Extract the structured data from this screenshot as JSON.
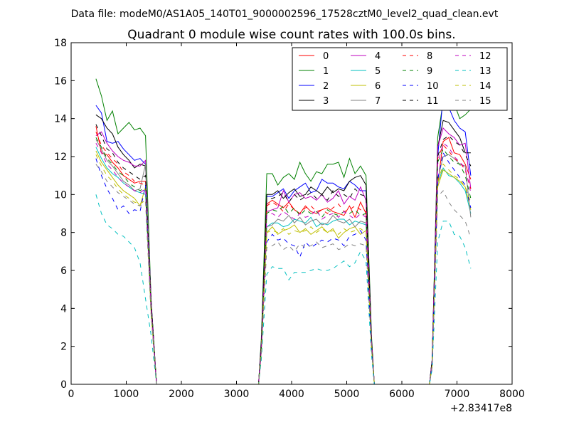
{
  "header": {
    "data_file": "Data file: modeM0/AS1A05_140T01_9000002596_17528cztM0_level2_quad_clean.evt"
  },
  "chart_data": {
    "type": "line",
    "title": "Quadrant 0 module wise count rates with 100.0s bins.",
    "xlabel": "",
    "ylabel": "",
    "x_offset_label": "+2.83417e8",
    "xlim": [
      0,
      8000
    ],
    "ylim": [
      0,
      18
    ],
    "xticks": [
      0,
      1000,
      2000,
      3000,
      4000,
      5000,
      6000,
      7000,
      8000
    ],
    "yticks": [
      0,
      2,
      4,
      6,
      8,
      10,
      12,
      14,
      16,
      18
    ],
    "grid": false,
    "legend_position": "top-right",
    "segments": [
      {
        "x_start": 450,
        "step": 100,
        "count": 10,
        "drop_x": [
          1450,
          1550
        ]
      },
      {
        "rise_x": [
          3450,
          3550
        ],
        "x_start": 3650,
        "step": 100,
        "count": 17,
        "drop_x": [
          5350,
          5450
        ]
      },
      {
        "rise_x": [
          6550,
          6650
        ],
        "x_start": 6750,
        "step": 100,
        "count": 6
      },
      {
        "x_start": 6750,
        "step": 100,
        "count": 6
      }
    ],
    "zero_x": [
      1600,
      3400,
      5500,
      6500
    ],
    "series": [
      {
        "name": "0",
        "color": "#ff0000",
        "dash": "solid",
        "seg1": [
          13.6,
          12.2,
          12.1,
          11.7,
          11.4,
          11.0,
          10.8,
          10.6,
          10.7,
          10.7
        ],
        "seg1_drop": [
          4.3,
          0
        ],
        "seg2": [
          9.7,
          9.5,
          9.3,
          9.6,
          9.2,
          9.0,
          9.4,
          9.1,
          9.0,
          9.2,
          9.3,
          9.1,
          9.0,
          8.9,
          9.4,
          8.8,
          9.6
        ],
        "seg2_drop": [
          9.0,
          2.2
        ],
        "seg2_rise": [
          2.0,
          9.5
        ],
        "seg3": [
          12.8,
          13.0,
          12.2,
          12.1,
          11.6,
          10.8
        ],
        "seg3_rise": [
          1.0,
          10.5
        ]
      },
      {
        "name": "1",
        "color": "#008000",
        "dash": "solid",
        "seg1": [
          16.1,
          15.2,
          13.9,
          14.4,
          13.2,
          13.5,
          13.8,
          13.4,
          13.5,
          13.1
        ],
        "seg1_drop": [
          4.5,
          0
        ],
        "seg2": [
          11.1,
          10.5,
          10.9,
          11.1,
          10.8,
          11.7,
          11.1,
          10.7,
          11.2,
          11.1,
          11.6,
          11.6,
          11.7,
          10.9,
          11.9,
          11.1,
          11.5
        ],
        "seg2_drop": [
          11.0,
          2.5
        ],
        "seg2_rise": [
          2.4,
          11.1
        ],
        "seg3": [
          14.9,
          14.8,
          14.8,
          14.0,
          14.2,
          14.5
        ],
        "seg3_rise": [
          1.3,
          13.0
        ]
      },
      {
        "name": "2",
        "color": "#0000ff",
        "dash": "solid",
        "seg1": [
          14.7,
          14.3,
          12.8,
          12.7,
          12.8,
          12.4,
          12.1,
          11.8,
          11.9,
          11.6
        ],
        "seg1_drop": [
          4.4,
          0
        ],
        "seg2": [
          9.9,
          10.1,
          10.3,
          9.8,
          10.2,
          10.4,
          10.6,
          10.1,
          10.2,
          10.8,
          10.6,
          10.6,
          10.4,
          10.3,
          10.7,
          10.5,
          10.2
        ],
        "seg2_drop": [
          10.2,
          2.3
        ],
        "seg2_rise": [
          2.2,
          9.9
        ],
        "seg3": [
          15.2,
          14.6,
          13.9,
          13.5,
          13.3,
          11.0
        ],
        "seg3_rise": [
          1.3,
          12.0
        ]
      },
      {
        "name": "3",
        "color": "#000000",
        "dash": "solid",
        "seg1": [
          14.2,
          14.0,
          13.5,
          13.2,
          12.5,
          12.1,
          11.8,
          11.4,
          11.6,
          11.5
        ],
        "seg1_drop": [
          4.4,
          0
        ],
        "seg2": [
          10.0,
          10.2,
          9.8,
          10.1,
          10.3,
          9.9,
          10.0,
          10.4,
          10.2,
          10.0,
          10.4,
          10.1,
          10.3,
          10.2,
          10.7,
          10.9,
          11.0
        ],
        "seg2_drop": [
          10.5,
          2.3
        ],
        "seg2_rise": [
          2.2,
          10.0
        ],
        "seg3": [
          13.9,
          13.8,
          13.4,
          13.0,
          12.2,
          12.2
        ],
        "seg3_rise": [
          1.3,
          12.5
        ]
      },
      {
        "name": "4",
        "color": "#bf00bf",
        "dash": "solid",
        "seg1": [
          13.1,
          13.3,
          12.7,
          12.3,
          12.0,
          11.8,
          11.7,
          11.5,
          11.5,
          11.8
        ],
        "seg1_drop": [
          4.3,
          0
        ],
        "seg2": [
          9.2,
          9.3,
          10.2,
          9.6,
          10.0,
          10.1,
          9.8,
          9.9,
          9.7,
          10.0,
          9.6,
          9.8,
          10.2,
          9.5,
          9.9,
          9.7,
          10.4
        ],
        "seg2_drop": [
          9.7,
          2.2
        ],
        "seg2_rise": [
          2.0,
          9.1
        ],
        "seg3": [
          13.5,
          13.2,
          13.0,
          12.6,
          12.7,
          10.3
        ],
        "seg3_rise": [
          1.2,
          12.5
        ]
      },
      {
        "name": "5",
        "color": "#00bfbf",
        "dash": "solid",
        "seg1": [
          12.5,
          11.9,
          11.4,
          11.1,
          10.9,
          10.6,
          10.4,
          10.2,
          10.1,
          10.0
        ],
        "seg1_drop": [
          3.9,
          0
        ],
        "seg2": [
          8.5,
          8.5,
          8.3,
          8.4,
          8.7,
          8.6,
          8.5,
          8.8,
          8.3,
          8.5,
          8.4,
          8.6,
          8.7,
          8.7,
          8.4,
          8.6,
          8.5
        ],
        "seg2_drop": [
          8.4,
          2.0
        ],
        "seg2_rise": [
          1.8,
          8.3
        ],
        "seg3": [
          11.4,
          11.0,
          10.9,
          10.6,
          10.2,
          9.0
        ],
        "seg3_rise": [
          1.0,
          10.6
        ]
      },
      {
        "name": "6",
        "color": "#bfbf00",
        "dash": "solid",
        "seg1": [
          12.3,
          11.7,
          11.3,
          10.9,
          10.5,
          10.2,
          10.0,
          9.8,
          9.4,
          10.4
        ],
        "seg1_drop": [
          3.8,
          0
        ],
        "seg2": [
          8.3,
          7.9,
          8.1,
          8.2,
          8.4,
          8.0,
          8.2,
          7.9,
          8.1,
          8.3,
          8.0,
          8.2,
          7.7,
          8.0,
          8.2,
          8.3,
          7.9
        ],
        "seg2_drop": [
          8.1,
          2.0
        ],
        "seg2_rise": [
          1.7,
          8.0
        ],
        "seg3": [
          11.3,
          11.1,
          10.9,
          10.7,
          10.4,
          9.2
        ],
        "seg3_rise": [
          1.0,
          10.4
        ]
      },
      {
        "name": "7",
        "color": "#808080",
        "dash": "solid",
        "seg1": [
          12.9,
          12.4,
          11.8,
          11.5,
          11.1,
          10.7,
          10.5,
          10.2,
          10.3,
          11.6
        ],
        "seg1_drop": [
          4.2,
          0
        ],
        "seg2": [
          8.4,
          8.7,
          8.6,
          8.9,
          8.5,
          8.8,
          8.4,
          8.6,
          8.7,
          8.4,
          8.5,
          8.9,
          8.6,
          8.5,
          8.7,
          8.3,
          8.6
        ],
        "seg2_drop": [
          8.5,
          2.1
        ],
        "seg2_rise": [
          1.9,
          8.3
        ],
        "seg3": [
          12.0,
          12.1,
          11.9,
          11.6,
          11.5,
          8.8
        ],
        "seg3_rise": [
          1.1,
          10.8
        ]
      },
      {
        "name": "8",
        "color": "#ff0000",
        "dash": "dashed",
        "seg1": [
          13.3,
          12.6,
          12.2,
          11.9,
          11.6,
          11.2,
          11.0,
          10.7,
          10.6,
          10.5
        ],
        "seg1_drop": [
          4.2,
          0
        ],
        "seg2": [
          9.6,
          9.4,
          9.1,
          9.5,
          9.2,
          9.0,
          9.3,
          9.4,
          9.1,
          9.2,
          9.0,
          9.3,
          9.5,
          9.1,
          9.2,
          9.4,
          9.2
        ],
        "seg2_drop": [
          9.1,
          2.2
        ],
        "seg2_rise": [
          2.0,
          9.4
        ],
        "seg3": [
          12.6,
          12.3,
          11.9,
          11.7,
          11.3,
          10.3
        ],
        "seg3_rise": [
          1.1,
          11.9
        ]
      },
      {
        "name": "9",
        "color": "#008000",
        "dash": "dashed",
        "seg1": [
          13.0,
          12.5,
          11.9,
          11.6,
          11.2,
          11.0,
          10.6,
          10.4,
          10.2,
          10.4
        ],
        "seg1_drop": [
          4.1,
          0
        ],
        "seg2": [
          9.2,
          9.1,
          9.4,
          9.0,
          9.3,
          8.9,
          9.2,
          9.0,
          9.1,
          8.8,
          9.2,
          9.0,
          8.9,
          9.1,
          9.0,
          9.2,
          8.9
        ],
        "seg2_drop": [
          9.0,
          2.1
        ],
        "seg2_rise": [
          1.9,
          9.0
        ],
        "seg3": [
          12.4,
          12.0,
          11.7,
          11.6,
          11.0,
          9.8
        ],
        "seg3_rise": [
          1.1,
          11.7
        ]
      },
      {
        "name": "10",
        "color": "#0000ff",
        "dash": "dashed",
        "seg1": [
          11.9,
          11.0,
          10.3,
          9.8,
          9.2,
          9.4,
          9.0,
          9.2,
          9.1,
          10.5
        ],
        "seg1_drop": [
          3.8,
          0
        ],
        "seg2": [
          7.9,
          7.6,
          7.7,
          7.4,
          7.3,
          6.7,
          7.5,
          7.2,
          7.4,
          7.6,
          7.5,
          7.7,
          7.6,
          7.3,
          7.8,
          7.9,
          8.1
        ],
        "seg2_drop": [
          7.6,
          1.8
        ],
        "seg2_rise": [
          1.7,
          7.5
        ],
        "seg3": [
          12.2,
          11.7,
          11.3,
          10.9,
          10.5,
          9.3
        ],
        "seg3_rise": [
          1.0,
          10.8
        ]
      },
      {
        "name": "11",
        "color": "#000000",
        "dash": "dashed",
        "seg1": [
          13.7,
          13.1,
          12.4,
          12.2,
          11.7,
          11.4,
          11.2,
          11.0,
          10.8,
          11.0
        ],
        "seg1_drop": [
          4.3,
          0
        ],
        "seg2": [
          9.8,
          9.9,
          10.1,
          9.6,
          10.0,
          9.7,
          9.9,
          10.1,
          9.8,
          10.0,
          9.7,
          10.2,
          9.9,
          10.0,
          9.8,
          10.3,
          10.0
        ],
        "seg2_drop": [
          9.9,
          2.3
        ],
        "seg2_rise": [
          2.1,
          9.8
        ],
        "seg3": [
          12.9,
          13.1,
          12.8,
          12.6,
          12.1,
          11.5
        ],
        "seg3_rise": [
          1.2,
          12.0
        ]
      },
      {
        "name": "12",
        "color": "#bf00bf",
        "dash": "dashed",
        "seg1": [
          12.7,
          12.2,
          11.6,
          11.3,
          10.9,
          10.6,
          10.4,
          10.2,
          10.1,
          10.3
        ],
        "seg1_drop": [
          4.0,
          0
        ],
        "seg2": [
          9.0,
          8.8,
          9.1,
          8.9,
          8.7,
          9.0,
          8.8,
          8.9,
          9.2,
          8.7,
          8.9,
          9.0,
          8.8,
          9.1,
          8.9,
          8.7,
          9.0
        ],
        "seg2_drop": [
          8.8,
          2.1
        ],
        "seg2_rise": [
          1.8,
          8.9
        ],
        "seg3": [
          12.7,
          12.5,
          12.0,
          11.7,
          11.4,
          10.1
        ],
        "seg3_rise": [
          1.1,
          11.6
        ]
      },
      {
        "name": "13",
        "color": "#00bfbf",
        "dash": "dashed",
        "seg1": [
          10.0,
          9.0,
          8.4,
          8.2,
          7.9,
          7.8,
          7.5,
          7.2,
          6.4,
          4.5
        ],
        "seg1_drop": [
          2.6,
          0
        ],
        "seg2": [
          6.2,
          6.1,
          6.1,
          5.5,
          5.9,
          5.9,
          5.9,
          6.0,
          6.1,
          6.0,
          6.0,
          6.1,
          6.3,
          6.5,
          6.2,
          6.4,
          7.0
        ],
        "seg2_drop": [
          6.5,
          1.5
        ],
        "seg2_rise": [
          1.3,
          5.8
        ],
        "seg3": [
          8.6,
          8.6,
          7.9,
          7.8,
          7.2,
          6.1
        ],
        "seg3_rise": [
          0.8,
          7.5
        ]
      },
      {
        "name": "14",
        "color": "#bfbf00",
        "dash": "dashed",
        "seg1": [
          12.1,
          11.5,
          11.0,
          10.7,
          10.3,
          10.0,
          9.8,
          9.6,
          9.5,
          9.7
        ],
        "seg1_drop": [
          3.7,
          0
        ],
        "seg2": [
          8.1,
          8.0,
          8.2,
          7.9,
          8.1,
          8.0,
          8.1,
          8.3,
          8.0,
          8.2,
          8.0,
          8.1,
          7.9,
          8.2,
          8.0,
          8.1,
          8.2
        ],
        "seg2_drop": [
          8.0,
          1.9
        ],
        "seg2_rise": [
          1.7,
          8.0
        ],
        "seg3": [
          11.6,
          11.3,
          11.0,
          10.8,
          10.4,
          9.6
        ],
        "seg3_rise": [
          1.0,
          10.6
        ]
      },
      {
        "name": "15",
        "color": "#808080",
        "dash": "dashed",
        "seg1": [
          11.6,
          11.2,
          10.7,
          10.4,
          10.1,
          9.9,
          9.7,
          9.5,
          9.4,
          9.6
        ],
        "seg1_drop": [
          3.7,
          0
        ],
        "seg2": [
          7.3,
          7.5,
          7.1,
          7.3,
          7.0,
          7.4,
          7.2,
          7.3,
          7.5,
          7.2,
          7.3,
          7.4,
          7.1,
          7.2,
          7.4,
          7.3,
          7.4
        ],
        "seg2_drop": [
          7.3,
          1.8
        ],
        "seg2_rise": [
          1.6,
          7.2
        ],
        "seg3": [
          10.2,
          9.6,
          9.2,
          8.9,
          8.6,
          7.7
        ],
        "seg3_rise": [
          0.9,
          9.9
        ]
      }
    ]
  }
}
